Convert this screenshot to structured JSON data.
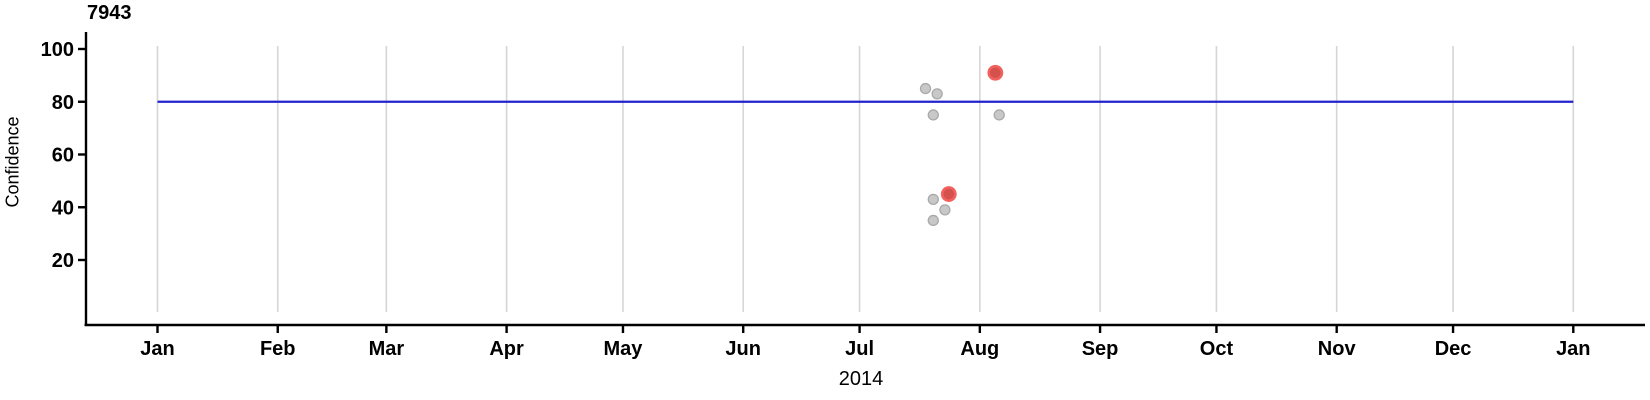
{
  "page": {
    "background": "#FFFFFF"
  },
  "chart_data": {
    "type": "scatter",
    "title": "7943",
    "xlabel": "2014",
    "ylabel": "Confidence",
    "x_axis": {
      "kind": "time",
      "year": "2014",
      "tick_labels": [
        "Jan",
        "Feb",
        "Mar",
        "Apr",
        "May",
        "Jun",
        "Jul",
        "Aug",
        "Sep",
        "Oct",
        "Nov",
        "Dec",
        "Jan"
      ],
      "tick_day_of_year": [
        0,
        31,
        59,
        90,
        120,
        151,
        181,
        212,
        243,
        273,
        304,
        334,
        365
      ],
      "grid": true
    },
    "y_axis": {
      "tick_values": [
        100,
        80,
        60,
        40,
        20
      ],
      "tick_labels": [
        "100",
        "80",
        "60",
        "40",
        "20"
      ],
      "range": [
        0,
        107
      ],
      "grid": false
    },
    "reference_line": {
      "axis": "y",
      "value": 80,
      "color": "#2323CE",
      "x_start_day": 0,
      "x_end_day": 365
    },
    "series": [
      {
        "name": "points",
        "style": {
          "fill": "#C8C8C8",
          "stroke": "#A9A9A9",
          "radius": 5,
          "stroke_width": 1.3
        },
        "points": [
          {
            "date": "2014-07-18",
            "day_of_year": 198,
            "confidence": 85
          },
          {
            "date": "2014-07-21",
            "day_of_year": 201,
            "confidence": 83
          },
          {
            "date": "2014-07-20",
            "day_of_year": 200,
            "confidence": 75
          },
          {
            "date": "2014-08-06",
            "day_of_year": 217,
            "confidence": 75
          },
          {
            "date": "2014-07-20",
            "day_of_year": 200,
            "confidence": 43
          },
          {
            "date": "2014-07-23",
            "day_of_year": 203,
            "confidence": 39
          },
          {
            "date": "2014-07-20",
            "day_of_year": 200,
            "confidence": 35
          }
        ]
      },
      {
        "name": "highlighted-points",
        "style": {
          "fill": "#D5514E",
          "stroke": "#F2615D",
          "radius": 6.6,
          "stroke_width": 2.6
        },
        "points": [
          {
            "date": "2014-08-05",
            "day_of_year": 216,
            "confidence": 91
          },
          {
            "date": "2014-07-24",
            "day_of_year": 204,
            "confidence": 45
          }
        ]
      }
    ],
    "colors": {
      "axis": "#000000",
      "grid": "#D6D6D6",
      "text": "#000000",
      "reference_line": "#2323CE"
    }
  }
}
